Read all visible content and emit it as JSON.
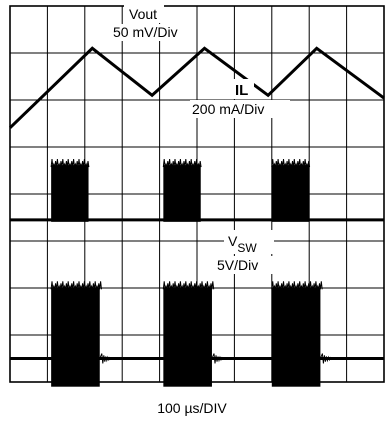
{
  "chart_data": {
    "type": "oscilloscope",
    "grid": true,
    "grid_divisions": {
      "x": 10,
      "y": 8
    },
    "xlabel": "100 µs/DIV",
    "time_per_div_us": 100,
    "series": [
      {
        "name": "Vout",
        "scale": "50 mV/Div",
        "kind": "triangle",
        "peak_times_div": [
          2.2,
          5.2,
          8.2
        ],
        "trough_times_div": [
          0.9,
          3.8,
          6.9,
          9.9
        ],
        "peak_level_div": 0.9,
        "trough_level_div": 1.9
      },
      {
        "name": "IL",
        "scale": "200 mA/Div",
        "kind": "burst",
        "baseline_level_div": 4.55,
        "burst_top_level_div": 3.3,
        "bursts_div": [
          [
            1.1,
            2.1
          ],
          [
            4.1,
            5.1
          ],
          [
            7.0,
            8.0
          ]
        ]
      },
      {
        "name": "V",
        "name_subscript": "SW",
        "scale": "5V/Div",
        "kind": "burst",
        "baseline_level_div": 7.5,
        "burst_top_level_div": 5.9,
        "burst_bottom_level_div": 8.1,
        "bursts_div": [
          [
            1.1,
            2.4
          ],
          [
            4.1,
            5.4
          ],
          [
            7.0,
            8.3
          ]
        ]
      }
    ]
  }
}
